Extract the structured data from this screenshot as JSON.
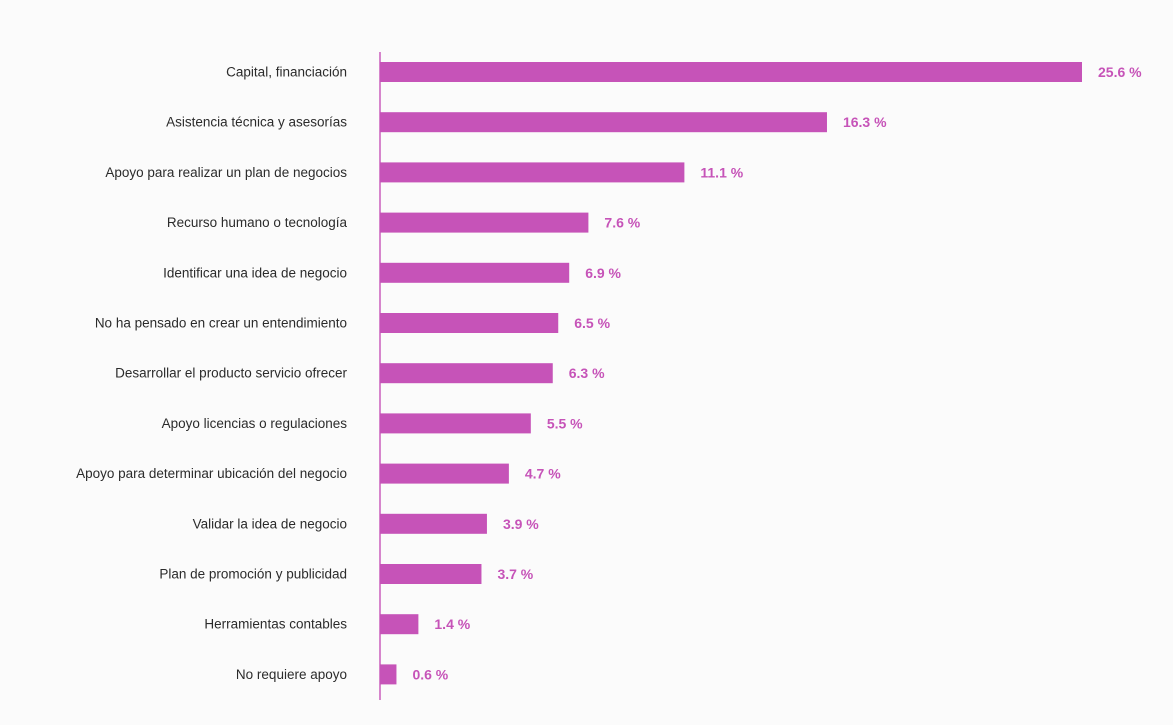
{
  "colors": {
    "bar": "#c653b8",
    "value_label": "#c653b8",
    "axis": "#c653b8",
    "category_text": "#2b2b2b"
  },
  "chart_data": {
    "type": "bar",
    "orientation": "horizontal",
    "title": "",
    "xlabel": "",
    "ylabel": "",
    "grid": false,
    "xlim": [
      0,
      25.6
    ],
    "categories": [
      "Capital, financiación",
      "Asistencia técnica y asesorías",
      "Apoyo para realizar un plan de negocios",
      "Recurso humano o tecnología",
      "Identificar una idea de negocio",
      "No ha pensado en crear un entendimiento",
      "Desarrollar el producto servicio ofrecer",
      "Apoyo licencias o regulaciones",
      "Apoyo para determinar ubicación del negocio",
      "Validar la idea de negocio",
      "Plan de promoción y publicidad",
      "Herramientas contables",
      "No requiere apoyo"
    ],
    "values": [
      25.6,
      16.3,
      11.1,
      7.6,
      6.9,
      6.5,
      6.3,
      5.5,
      4.7,
      3.9,
      3.7,
      1.4,
      0.6
    ],
    "value_labels": [
      "25.6 %",
      "16.3 %",
      "11.1 %",
      "7.6 %",
      "6.9 %",
      "6.5 %",
      "6.3 %",
      "5.5 %",
      "4.7 %",
      "3.9 %",
      "3.7 %",
      "1.4 %",
      "0.6 %"
    ]
  }
}
